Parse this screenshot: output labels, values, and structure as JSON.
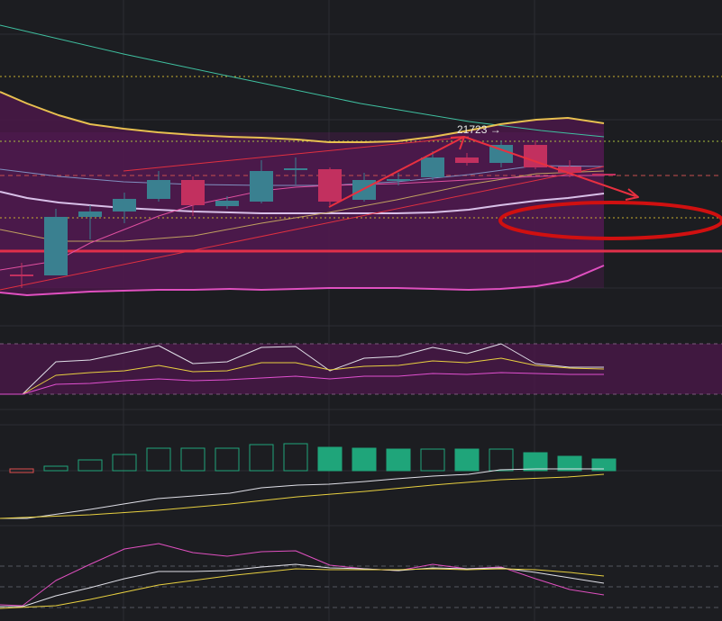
{
  "annotation": {
    "label": "21723 →"
  }
}
